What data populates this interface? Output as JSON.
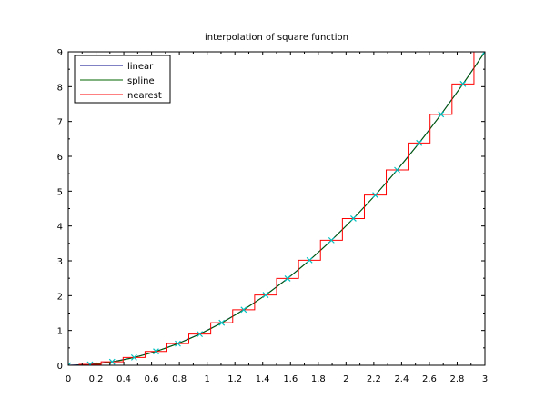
{
  "chart_data": {
    "type": "line",
    "title": "interpolation of square function",
    "xlabel": "",
    "ylabel": "",
    "xlim": [
      0,
      3
    ],
    "ylim": [
      0,
      9
    ],
    "x_ticks": [
      "0",
      "0.2",
      "0.4",
      "0.6",
      "0.8",
      "1",
      "1.2",
      "1.4",
      "1.6",
      "1.8",
      "2",
      "2.2",
      "2.4",
      "2.6",
      "2.8",
      "3"
    ],
    "y_ticks": [
      "0",
      "1",
      "2",
      "3",
      "4",
      "5",
      "6",
      "7",
      "8",
      "9"
    ],
    "grid": false,
    "legend": "top-left",
    "sample_points": {
      "x": [
        0,
        0.157,
        0.316,
        0.474,
        0.632,
        0.789,
        0.947,
        1.105,
        1.263,
        1.421,
        1.579,
        1.737,
        1.895,
        2.053,
        2.211,
        2.368,
        2.526,
        2.684,
        2.842,
        3.0
      ],
      "y": [
        0,
        0.025,
        0.1,
        0.225,
        0.399,
        0.623,
        0.897,
        1.222,
        1.596,
        2.019,
        2.493,
        3.017,
        3.59,
        4.214,
        4.887,
        5.609,
        6.382,
        7.204,
        8.078,
        9.0
      ],
      "marker": "x",
      "color": "#00c0c0"
    },
    "series": [
      {
        "name": "linear",
        "color": "#00008b",
        "kind": "linear"
      },
      {
        "name": "spline",
        "color": "#006400",
        "kind": "spline"
      },
      {
        "name": "nearest",
        "color": "#ff0000",
        "kind": "nearest"
      }
    ]
  }
}
